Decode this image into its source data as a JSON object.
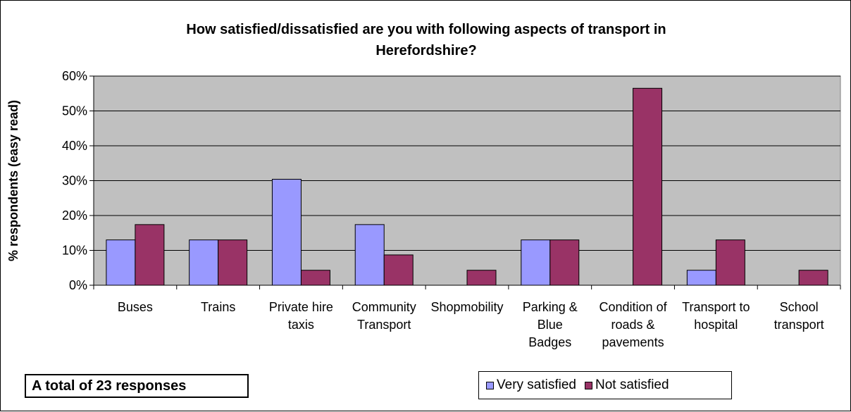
{
  "chart_data": {
    "type": "bar",
    "title": "How satisfied/dissatisfied are you with following aspects of transport in Herefordshire?",
    "title_lines": [
      "How satisfied/dissatisfied are you with following aspects of transport in",
      "Herefordshire?"
    ],
    "ylabel": "% respondents (easy read)",
    "xlabel": "",
    "ylim": [
      0,
      60
    ],
    "yticks": [
      "0%",
      "10%",
      "20%",
      "30%",
      "40%",
      "50%",
      "60%"
    ],
    "grid": true,
    "categories": [
      [
        "Buses"
      ],
      [
        "Trains"
      ],
      [
        "Private hire",
        "taxis"
      ],
      [
        "Community",
        "Transport"
      ],
      [
        "Shopmobility"
      ],
      [
        "Parking &",
        "Blue",
        "Badges"
      ],
      [
        "Condition of",
        "roads &",
        "pavements"
      ],
      [
        "Transport to",
        "hospital"
      ],
      [
        "School",
        "transport"
      ]
    ],
    "series": [
      {
        "name": "Very satisfied",
        "color": "#9999ff",
        "values": [
          13,
          13,
          30.4,
          17.4,
          0,
          13,
          0,
          4.3,
          0
        ]
      },
      {
        "name": "Not satisfied",
        "color": "#993366",
        "values": [
          17.4,
          13,
          4.3,
          8.7,
          4.3,
          13,
          56.5,
          13,
          4.3
        ]
      }
    ],
    "legend_position": "bottom-right",
    "plot_background": "#c0c0c0",
    "annotation": "A total of 23 responses"
  }
}
